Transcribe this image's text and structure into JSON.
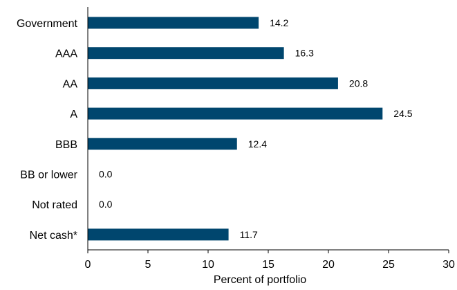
{
  "chart_data": {
    "type": "bar",
    "orientation": "horizontal",
    "categories": [
      "Government",
      "AAA",
      "AA",
      "A",
      "BBB",
      "BB or lower",
      "Not rated",
      "Net cash*"
    ],
    "values": [
      14.2,
      16.3,
      20.8,
      24.5,
      12.4,
      0.0,
      0.0,
      11.7
    ],
    "value_labels": [
      "14.2",
      "16.3",
      "20.8",
      "24.5",
      "12.4",
      "0.0",
      "0.0",
      "11.7"
    ],
    "xlabel": "Percent of portfolio",
    "xlim": [
      0,
      30
    ],
    "xticks": [
      0,
      5,
      10,
      15,
      20,
      25,
      30
    ],
    "xtick_labels": [
      "0",
      "5",
      "10",
      "15",
      "20",
      "25",
      "30"
    ],
    "bar_color": "#00466E",
    "axis_color": "#000000",
    "grid": false,
    "legend": "none"
  }
}
